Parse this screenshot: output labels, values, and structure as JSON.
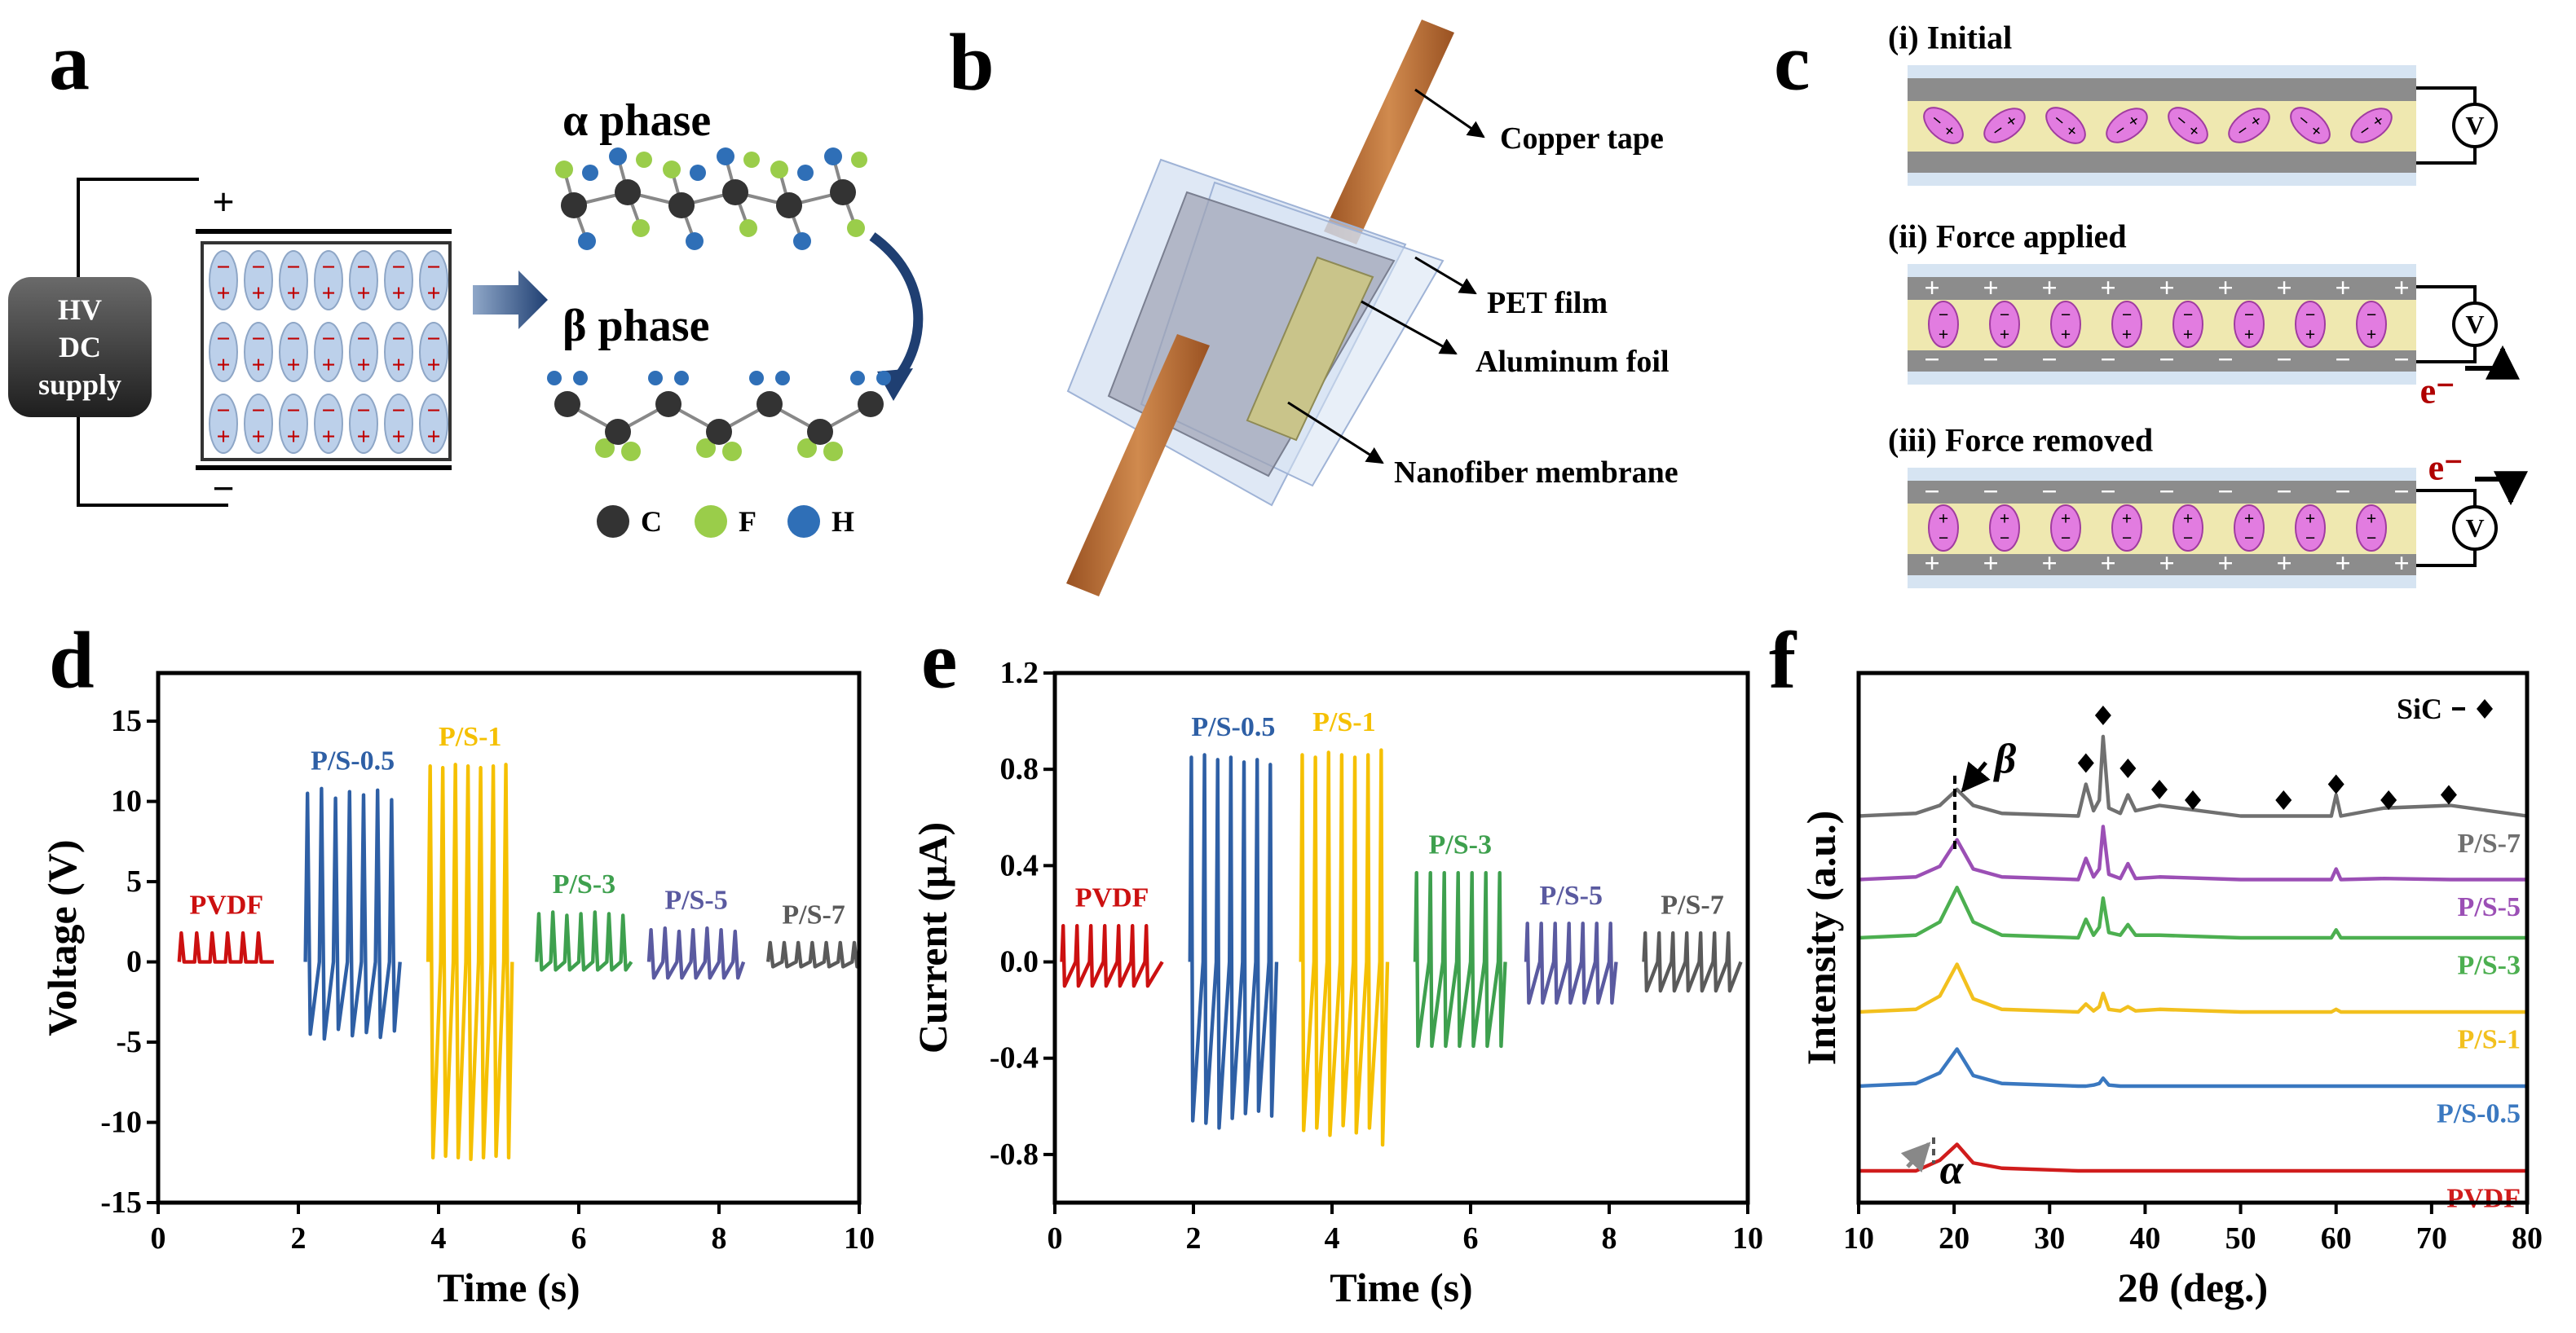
{
  "panels": {
    "a": {
      "label": "a",
      "hv": [
        "HV",
        "DC",
        "supply"
      ],
      "plus": "+",
      "minus": "−",
      "alpha_phase": "α phase",
      "beta_phase": "β phase",
      "legend": [
        "C",
        "F",
        "H"
      ]
    },
    "b": {
      "label": "b",
      "callouts": [
        "Copper tape",
        "PET film",
        "Aluminum foil",
        "Nanofiber membrane"
      ]
    },
    "c": {
      "label": "c",
      "states": [
        "(i) Initial",
        "(ii) Force applied",
        "(iii) Force removed"
      ],
      "meter": "V",
      "electron": "e⁻",
      "plus": "+",
      "minus": "−"
    },
    "d": {
      "label": "d"
    },
    "e": {
      "label": "e"
    },
    "f": {
      "label": "f"
    }
  },
  "chart_data": [
    {
      "type": "line",
      "xlabel": "Time (s)",
      "ylabel": "Voltage (V)",
      "xlim": [
        0,
        10
      ],
      "ylim": [
        -15,
        18
      ],
      "xticks": [
        0,
        2,
        4,
        6,
        8,
        10
      ],
      "yticks": [
        -15,
        -10,
        -5,
        0,
        5,
        10,
        15
      ],
      "series_labels": "above",
      "series": [
        {
          "name": "PVDF",
          "color": "#cc1010",
          "x": [
            0.3,
            0.33,
            0.37,
            0.52,
            0.55,
            0.59,
            0.74,
            0.77,
            0.81,
            0.96,
            0.99,
            1.03,
            1.18,
            1.21,
            1.25,
            1.4,
            1.43,
            1.47,
            1.65
          ],
          "values": [
            0,
            1.8,
            0,
            0,
            1.8,
            0,
            0,
            1.8,
            0,
            0,
            1.8,
            0,
            0,
            1.8,
            0,
            0,
            1.8,
            0,
            0
          ]
        },
        {
          "name": "P/S-0.5",
          "color": "#2e5fa5",
          "x": [
            2.1,
            2.13,
            2.17,
            2.3,
            2.33,
            2.37,
            2.5,
            2.53,
            2.57,
            2.7,
            2.73,
            2.77,
            2.9,
            2.93,
            2.97,
            3.1,
            3.13,
            3.17,
            3.3,
            3.33,
            3.37,
            3.45
          ],
          "values": [
            0,
            10.5,
            -4.5,
            0,
            10.8,
            -4.8,
            0,
            10.2,
            -4.2,
            0,
            10.6,
            -4.6,
            0,
            10.4,
            -4.4,
            0,
            10.7,
            -4.7,
            0,
            10.1,
            -4.3,
            0
          ]
        },
        {
          "name": "P/S-1",
          "color": "#f5c000",
          "x": [
            3.85,
            3.88,
            3.92,
            4.03,
            4.06,
            4.1,
            4.21,
            4.24,
            4.28,
            4.39,
            4.42,
            4.46,
            4.57,
            4.6,
            4.64,
            4.75,
            4.78,
            4.82,
            4.93,
            4.96,
            5.0,
            5.05
          ],
          "values": [
            0,
            12.2,
            -12.2,
            0,
            12.1,
            -12.1,
            0,
            12.3,
            -12.2,
            0,
            12.2,
            -12.3,
            0,
            12.1,
            -12.2,
            0,
            12.2,
            -12.1,
            0,
            12.3,
            -12.2,
            0
          ]
        },
        {
          "name": "P/S-3",
          "color": "#3ea04e",
          "x": [
            5.4,
            5.43,
            5.47,
            5.6,
            5.63,
            5.67,
            5.8,
            5.83,
            5.87,
            6.0,
            6.03,
            6.07,
            6.2,
            6.23,
            6.27,
            6.4,
            6.43,
            6.47,
            6.6,
            6.63,
            6.67,
            6.75
          ],
          "values": [
            0,
            3.0,
            -0.5,
            0,
            3.1,
            -0.5,
            0,
            2.9,
            -0.5,
            0,
            3.0,
            -0.5,
            0,
            3.1,
            -0.5,
            0,
            3.0,
            -0.5,
            0,
            2.9,
            -0.5,
            0
          ]
        },
        {
          "name": "P/S-5",
          "color": "#5a5aa0",
          "x": [
            7.0,
            7.03,
            7.07,
            7.2,
            7.23,
            7.27,
            7.4,
            7.43,
            7.47,
            7.6,
            7.63,
            7.67,
            7.8,
            7.83,
            7.87,
            8.0,
            8.03,
            8.07,
            8.2,
            8.23,
            8.27,
            8.35
          ],
          "values": [
            0,
            2.0,
            -1.0,
            0,
            2.1,
            -1.0,
            0,
            1.9,
            -1.0,
            0,
            2.0,
            -1.0,
            0,
            2.1,
            -1.0,
            0,
            2.0,
            -1.0,
            0,
            1.9,
            -1.0,
            0
          ]
        },
        {
          "name": "P/S-7",
          "color": "#5a5a5a",
          "x": [
            8.7,
            8.73,
            8.77,
            8.9,
            8.93,
            8.97,
            9.1,
            9.13,
            9.17,
            9.3,
            9.33,
            9.37,
            9.5,
            9.53,
            9.57,
            9.7,
            9.73,
            9.77,
            9.9,
            9.93,
            9.97,
            10.0
          ],
          "values": [
            0,
            1.2,
            -0.3,
            0,
            1.2,
            -0.3,
            0,
            1.2,
            -0.3,
            0,
            1.2,
            -0.3,
            0,
            1.2,
            -0.3,
            0,
            1.2,
            -0.3,
            0,
            1.2,
            -0.3,
            0
          ]
        }
      ]
    },
    {
      "type": "line",
      "xlabel": "Time (s)",
      "ylabel": "Current (μA)",
      "xlim": [
        0,
        10
      ],
      "ylim": [
        -1.0,
        1.2
      ],
      "xticks": [
        0,
        2,
        4,
        6,
        8,
        10
      ],
      "yticks": [
        -0.8,
        -0.4,
        {
          "value": 0,
          "label": "0.0"
        },
        0.4,
        0.8,
        1.2
      ],
      "series_labels": "above",
      "series": [
        {
          "name": "PVDF",
          "color": "#cc1010",
          "x": [
            0.1,
            0.12,
            0.14,
            0.3,
            0.32,
            0.34,
            0.5,
            0.52,
            0.54,
            0.7,
            0.72,
            0.74,
            0.9,
            0.92,
            0.94,
            1.1,
            1.12,
            1.14,
            1.3,
            1.32,
            1.34,
            1.55
          ],
          "values": [
            0,
            0.15,
            -0.1,
            0,
            0.15,
            -0.1,
            0,
            0.15,
            -0.1,
            0,
            0.15,
            -0.1,
            0,
            0.15,
            -0.1,
            0,
            0.15,
            -0.1,
            0,
            0.15,
            -0.1,
            0
          ]
        },
        {
          "name": "P/S-0.5",
          "color": "#2e5fa5",
          "x": [
            1.95,
            1.97,
            1.99,
            2.14,
            2.16,
            2.18,
            2.33,
            2.35,
            2.37,
            2.52,
            2.54,
            2.56,
            2.71,
            2.73,
            2.75,
            2.9,
            2.92,
            2.94,
            3.09,
            3.11,
            3.13,
            3.2
          ],
          "values": [
            0,
            0.85,
            -0.66,
            0,
            0.86,
            -0.67,
            0,
            0.84,
            -0.69,
            0,
            0.85,
            -0.65,
            0,
            0.83,
            -0.63,
            0,
            0.84,
            -0.62,
            0,
            0.82,
            -0.64,
            0
          ]
        },
        {
          "name": "P/S-1",
          "color": "#f5c000",
          "x": [
            3.55,
            3.57,
            3.59,
            3.74,
            3.76,
            3.78,
            3.93,
            3.95,
            3.97,
            4.12,
            4.14,
            4.16,
            4.31,
            4.33,
            4.35,
            4.5,
            4.52,
            4.54,
            4.69,
            4.71,
            4.73,
            4.8
          ],
          "values": [
            0,
            0.86,
            -0.7,
            0,
            0.85,
            -0.69,
            0,
            0.87,
            -0.72,
            0,
            0.86,
            -0.68,
            0,
            0.85,
            -0.71,
            0,
            0.86,
            -0.69,
            0,
            0.88,
            -0.76,
            0
          ]
        },
        {
          "name": "P/S-3",
          "color": "#3ea04e",
          "x": [
            5.2,
            5.22,
            5.24,
            5.4,
            5.42,
            5.44,
            5.6,
            5.62,
            5.64,
            5.8,
            5.82,
            5.84,
            6.0,
            6.02,
            6.04,
            6.2,
            6.22,
            6.24,
            6.4,
            6.42,
            6.44,
            6.5
          ],
          "values": [
            0,
            0.37,
            -0.35,
            0,
            0.37,
            -0.35,
            0,
            0.37,
            -0.35,
            0,
            0.37,
            -0.35,
            0,
            0.37,
            -0.35,
            0,
            0.37,
            -0.35,
            0,
            0.37,
            -0.35,
            0
          ]
        },
        {
          "name": "P/S-5",
          "color": "#5a5aa0",
          "x": [
            6.8,
            6.82,
            6.84,
            7.0,
            7.02,
            7.04,
            7.2,
            7.22,
            7.24,
            7.4,
            7.42,
            7.44,
            7.6,
            7.62,
            7.64,
            7.8,
            7.82,
            7.84,
            8.0,
            8.02,
            8.04,
            8.1
          ],
          "values": [
            0,
            0.16,
            -0.17,
            0,
            0.16,
            -0.17,
            0,
            0.16,
            -0.17,
            0,
            0.16,
            -0.17,
            0,
            0.16,
            -0.17,
            0,
            0.16,
            -0.17,
            0,
            0.16,
            -0.17,
            0
          ]
        },
        {
          "name": "P/S-7",
          "color": "#5a5a5a",
          "x": [
            8.5,
            8.52,
            8.54,
            8.7,
            8.72,
            8.74,
            8.9,
            8.92,
            8.94,
            9.1,
            9.12,
            9.14,
            9.3,
            9.32,
            9.34,
            9.5,
            9.52,
            9.54,
            9.7,
            9.72,
            9.74,
            9.9
          ],
          "values": [
            0,
            0.12,
            -0.12,
            0,
            0.12,
            -0.12,
            0,
            0.12,
            -0.12,
            0,
            0.12,
            -0.12,
            0,
            0.12,
            -0.12,
            0,
            0.12,
            -0.12,
            0,
            0.12,
            -0.12,
            0
          ]
        }
      ]
    },
    {
      "type": "line",
      "xlabel": "2θ (deg.)",
      "ylabel": "Intensity (a.u.)",
      "xlim": [
        10,
        80
      ],
      "ylim": [
        0,
        10
      ],
      "xticks": [
        10,
        20,
        30,
        40,
        50,
        60,
        70,
        80
      ],
      "series_labels": "end",
      "annotations": [
        "β",
        "α"
      ],
      "x": [
        10,
        16,
        18.5,
        20.3,
        22,
        25,
        33,
        33.8,
        34.6,
        35.2,
        35.6,
        36.2,
        37.4,
        38.2,
        39,
        41.5,
        50,
        59.5,
        60,
        60.5,
        65,
        72,
        80
      ],
      "series": [
        {
          "name": "PVDF",
          "color": "#d01c1c",
          "values": [
            0.6,
            0.6,
            0.8,
            1.1,
            0.75,
            0.65,
            0.6,
            0.6,
            0.6,
            0.6,
            0.6,
            0.6,
            0.6,
            0.6,
            0.6,
            0.6,
            0.6,
            0.6,
            0.6,
            0.6,
            0.6,
            0.6,
            0.6
          ]
        },
        {
          "name": "P/S-0.5",
          "color": "#3a78c0",
          "values": [
            2.2,
            2.25,
            2.45,
            2.9,
            2.4,
            2.25,
            2.2,
            2.2,
            2.22,
            2.25,
            2.35,
            2.22,
            2.2,
            2.2,
            2.2,
            2.2,
            2.2,
            2.2,
            2.2,
            2.2,
            2.2,
            2.2,
            2.2
          ]
        },
        {
          "name": "P/S-1",
          "color": "#f2c01e",
          "values": [
            3.6,
            3.65,
            3.9,
            4.5,
            3.85,
            3.65,
            3.6,
            3.75,
            3.62,
            3.7,
            3.95,
            3.65,
            3.62,
            3.7,
            3.62,
            3.65,
            3.6,
            3.6,
            3.65,
            3.6,
            3.6,
            3.6,
            3.6
          ]
        },
        {
          "name": "P/S-3",
          "color": "#4caf50",
          "values": [
            5.0,
            5.05,
            5.3,
            5.95,
            5.3,
            5.05,
            5.0,
            5.35,
            5.05,
            5.2,
            5.75,
            5.1,
            5.05,
            5.25,
            5.05,
            5.05,
            5.0,
            5.0,
            5.15,
            5.0,
            5.0,
            5.0,
            5.0
          ]
        },
        {
          "name": "P/S-5",
          "color": "#9b4fb5",
          "values": [
            6.1,
            6.15,
            6.35,
            6.85,
            6.3,
            6.15,
            6.1,
            6.5,
            6.15,
            6.3,
            7.1,
            6.2,
            6.12,
            6.4,
            6.12,
            6.15,
            6.1,
            6.1,
            6.3,
            6.1,
            6.12,
            6.1,
            6.1
          ]
        },
        {
          "name": "P/S-7",
          "color": "#707070",
          "values": [
            7.3,
            7.35,
            7.5,
            7.8,
            7.5,
            7.35,
            7.3,
            7.9,
            7.4,
            7.6,
            8.8,
            7.45,
            7.35,
            7.7,
            7.4,
            7.5,
            7.3,
            7.3,
            7.7,
            7.3,
            7.45,
            7.5,
            7.3
          ]
        },
        {
          "name": "SiC",
          "color": "#000000",
          "marker": "diamond",
          "x": [
            33.8,
            35.6,
            38.2,
            41.5,
            45,
            54.5,
            60,
            65.5,
            71.8
          ],
          "values": [
            8.3,
            9.2,
            8.2,
            7.8,
            7.6,
            7.6,
            7.9,
            7.6,
            7.7
          ]
        }
      ]
    }
  ]
}
